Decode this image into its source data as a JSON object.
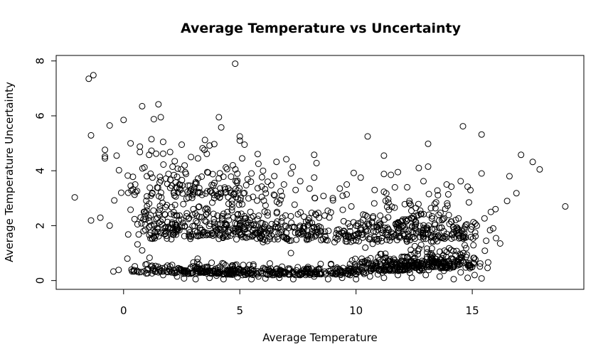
{
  "chart_data": {
    "type": "scatter",
    "title": "Average Temperature vs Uncertainty",
    "xlabel": "Average Temperature",
    "ylabel": "Average Temperature Uncertainty",
    "xlim": [
      -2.9,
      19.8
    ],
    "ylim": [
      -0.32,
      8.2
    ],
    "x_ticks": [
      0,
      5,
      10,
      15
    ],
    "y_ticks": [
      0,
      2,
      4,
      6,
      8
    ],
    "grid": false,
    "legend": "none",
    "marker": "open-circle",
    "point_color": "#000000",
    "points": [
      [
        -2.1,
        3.03
      ],
      [
        -1.5,
        7.35
      ],
      [
        -1.3,
        7.48
      ],
      [
        -1.4,
        5.29
      ],
      [
        -1.4,
        2.19
      ],
      [
        -1.0,
        2.29
      ],
      [
        -0.8,
        4.76
      ],
      [
        -0.8,
        4.52
      ],
      [
        -0.8,
        4.45
      ],
      [
        -0.6,
        5.65
      ],
      [
        -0.6,
        2.0
      ],
      [
        -0.3,
        4.55
      ],
      [
        -0.2,
        4.02
      ],
      [
        -0.4,
        2.92
      ],
      [
        -0.1,
        3.2
      ],
      [
        0.0,
        5.85
      ],
      [
        0.2,
        1.68
      ],
      [
        0.3,
        2.58
      ],
      [
        0.3,
        5.0
      ],
      [
        0.4,
        3.78
      ],
      [
        0.4,
        3.32
      ],
      [
        0.5,
        3.5
      ],
      [
        0.6,
        1.32
      ],
      [
        0.7,
        4.88
      ],
      [
        0.7,
        4.68
      ],
      [
        0.8,
        6.35
      ],
      [
        0.8,
        1.1
      ],
      [
        0.9,
        4.12
      ],
      [
        1.0,
        3.8
      ],
      [
        1.1,
        4.58
      ],
      [
        1.2,
        5.15
      ],
      [
        1.2,
        4.73
      ],
      [
        1.3,
        5.88
      ],
      [
        1.4,
        4.62
      ],
      [
        1.5,
        6.42
      ],
      [
        1.6,
        5.95
      ],
      [
        1.7,
        5.05
      ],
      [
        1.7,
        4.62
      ],
      [
        1.6,
        3.65
      ],
      [
        1.2,
        0.5
      ],
      [
        1.0,
        0.6
      ],
      [
        2.0,
        4.68
      ],
      [
        2.2,
        4.35
      ],
      [
        2.5,
        4.95
      ],
      [
        2.3,
        3.78
      ],
      [
        2.9,
        4.5
      ],
      [
        3.2,
        4.45
      ],
      [
        3.4,
        4.82
      ],
      [
        3.5,
        5.12
      ],
      [
        3.7,
        4.92
      ],
      [
        3.9,
        4.97
      ],
      [
        4.1,
        5.95
      ],
      [
        4.2,
        5.58
      ],
      [
        3.6,
        3.95
      ],
      [
        4.4,
        4.12
      ],
      [
        4.6,
        3.2
      ],
      [
        4.7,
        4.2
      ],
      [
        4.8,
        7.9
      ],
      [
        5.0,
        5.25
      ],
      [
        5.0,
        5.1
      ],
      [
        5.2,
        4.95
      ],
      [
        5.1,
        4.45
      ],
      [
        5.5,
        3.9
      ],
      [
        5.8,
        4.25
      ],
      [
        6.0,
        4.0
      ],
      [
        6.2,
        3.6
      ],
      [
        6.5,
        3.1
      ],
      [
        6.9,
        3.5
      ],
      [
        7.0,
        4.42
      ],
      [
        7.2,
        3.9
      ],
      [
        7.4,
        3.3
      ],
      [
        7.6,
        3.62
      ],
      [
        8.0,
        3.35
      ],
      [
        8.2,
        3.75
      ],
      [
        8.2,
        4.58
      ],
      [
        8.3,
        4.28
      ],
      [
        8.6,
        3.08
      ],
      [
        9.0,
        3.0
      ],
      [
        9.3,
        3.35
      ],
      [
        9.6,
        3.5
      ],
      [
        9.9,
        3.92
      ],
      [
        10.2,
        3.75
      ],
      [
        10.5,
        5.25
      ],
      [
        10.8,
        3.3
      ],
      [
        11.2,
        3.88
      ],
      [
        11.2,
        4.55
      ],
      [
        11.5,
        3.85
      ],
      [
        11.8,
        3.95
      ],
      [
        12.2,
        3.4
      ],
      [
        12.7,
        4.1
      ],
      [
        12.9,
        3.62
      ],
      [
        13.1,
        4.15
      ],
      [
        13.1,
        4.98
      ],
      [
        13.5,
        3.28
      ],
      [
        13.9,
        3.5
      ],
      [
        14.1,
        3.42
      ],
      [
        14.5,
        3.62
      ],
      [
        14.6,
        5.62
      ],
      [
        14.8,
        3.42
      ],
      [
        15.2,
        2.0
      ],
      [
        15.4,
        3.9
      ],
      [
        15.4,
        5.32
      ],
      [
        15.6,
        1.45
      ],
      [
        15.8,
        2.5
      ],
      [
        15.9,
        1.9
      ],
      [
        16.0,
        2.6
      ],
      [
        16.2,
        1.35
      ],
      [
        16.5,
        2.9
      ],
      [
        16.6,
        3.8
      ],
      [
        16.9,
        3.18
      ],
      [
        17.1,
        4.58
      ],
      [
        17.6,
        4.32
      ],
      [
        17.9,
        4.05
      ],
      [
        19.0,
        2.7
      ],
      [
        0.6,
        2.05
      ],
      [
        0.9,
        2.5
      ],
      [
        1.1,
        2.8
      ],
      [
        1.4,
        2.25
      ],
      [
        1.3,
        1.6
      ],
      [
        1.5,
        0.3
      ],
      [
        1.7,
        0.2
      ],
      [
        2.0,
        0.35
      ],
      [
        2.3,
        0.15
      ],
      [
        2.6,
        0.08
      ],
      [
        2.9,
        0.25
      ],
      [
        3.1,
        0.05
      ],
      [
        3.4,
        0.3
      ],
      [
        3.7,
        0.1
      ],
      [
        4.0,
        0.18
      ],
      [
        4.3,
        0.05
      ],
      [
        4.6,
        0.22
      ],
      [
        4.9,
        0.12
      ],
      [
        5.2,
        0.3
      ],
      [
        5.5,
        0.05
      ],
      [
        5.8,
        0.15
      ],
      [
        6.1,
        0.08
      ],
      [
        6.4,
        0.2
      ],
      [
        6.7,
        0.1
      ],
      [
        7.0,
        0.3
      ],
      [
        7.3,
        0.05
      ],
      [
        7.6,
        0.2
      ],
      [
        7.9,
        0.4
      ],
      [
        8.2,
        0.15
      ],
      [
        8.5,
        0.3
      ],
      [
        8.8,
        0.05
      ],
      [
        9.1,
        0.25
      ],
      [
        9.4,
        0.1
      ],
      [
        9.7,
        0.35
      ],
      [
        10.0,
        0.05
      ],
      [
        10.3,
        0.3
      ],
      [
        10.6,
        0.15
      ],
      [
        10.9,
        0.45
      ],
      [
        11.2,
        0.1
      ],
      [
        11.5,
        0.6
      ],
      [
        11.8,
        0.2
      ],
      [
        12.1,
        0.4
      ],
      [
        12.4,
        0.1
      ],
      [
        12.7,
        0.5
      ],
      [
        13.0,
        0.2
      ],
      [
        13.3,
        0.7
      ],
      [
        13.6,
        0.15
      ],
      [
        13.9,
        0.45
      ],
      [
        14.2,
        0.05
      ],
      [
        14.5,
        0.3
      ],
      [
        14.8,
        0.1
      ],
      [
        15.1,
        0.2
      ],
      [
        15.4,
        0.08
      ],
      [
        5.3,
        2.0
      ],
      [
        6.0,
        1.4
      ],
      [
        7.2,
        1.0
      ],
      [
        8.1,
        2.1
      ],
      [
        9.2,
        1.5
      ],
      [
        10.4,
        1.2
      ],
      [
        11.6,
        1.7
      ],
      [
        12.8,
        1.3
      ],
      [
        13.7,
        2.2
      ],
      [
        14.6,
        1.6
      ],
      [
        3.0,
        2.6
      ],
      [
        2.4,
        3.5
      ],
      [
        3.8,
        3.2
      ],
      [
        6.6,
        2.5
      ],
      [
        9.8,
        2.7
      ],
      [
        12.3,
        2.9
      ]
    ],
    "clusters": [
      {
        "center": [
          3.0,
          0.25
        ],
        "spread": [
          1.6,
          0.22
        ],
        "count": 160
      },
      {
        "center": [
          5.5,
          0.2
        ],
        "spread": [
          1.4,
          0.18
        ],
        "count": 110
      },
      {
        "center": [
          8.8,
          0.2
        ],
        "spread": [
          1.4,
          0.18
        ],
        "count": 120
      },
      {
        "center": [
          11.5,
          0.35
        ],
        "spread": [
          0.9,
          0.35
        ],
        "count": 170
      },
      {
        "center": [
          13.7,
          0.45
        ],
        "spread": [
          0.9,
          0.4
        ],
        "count": 190
      },
      {
        "center": [
          3.2,
          1.6
        ],
        "spread": [
          1.3,
          0.85
        ],
        "count": 170
      },
      {
        "center": [
          5.8,
          1.5
        ],
        "spread": [
          1.4,
          0.8
        ],
        "count": 130
      },
      {
        "center": [
          8.5,
          1.4
        ],
        "spread": [
          1.5,
          0.8
        ],
        "count": 120
      },
      {
        "center": [
          11.5,
          1.4
        ],
        "spread": [
          1.1,
          0.8
        ],
        "count": 130
      },
      {
        "center": [
          13.8,
          1.5
        ],
        "spread": [
          1.0,
          0.85
        ],
        "count": 130
      },
      {
        "center": [
          2.5,
          3.0
        ],
        "spread": [
          1.1,
          0.7
        ],
        "count": 70
      },
      {
        "center": [
          4.5,
          2.9
        ],
        "spread": [
          1.2,
          0.7
        ],
        "count": 60
      },
      {
        "center": [
          1.5,
          1.5
        ],
        "spread": [
          0.6,
          0.8
        ],
        "count": 50
      }
    ]
  }
}
